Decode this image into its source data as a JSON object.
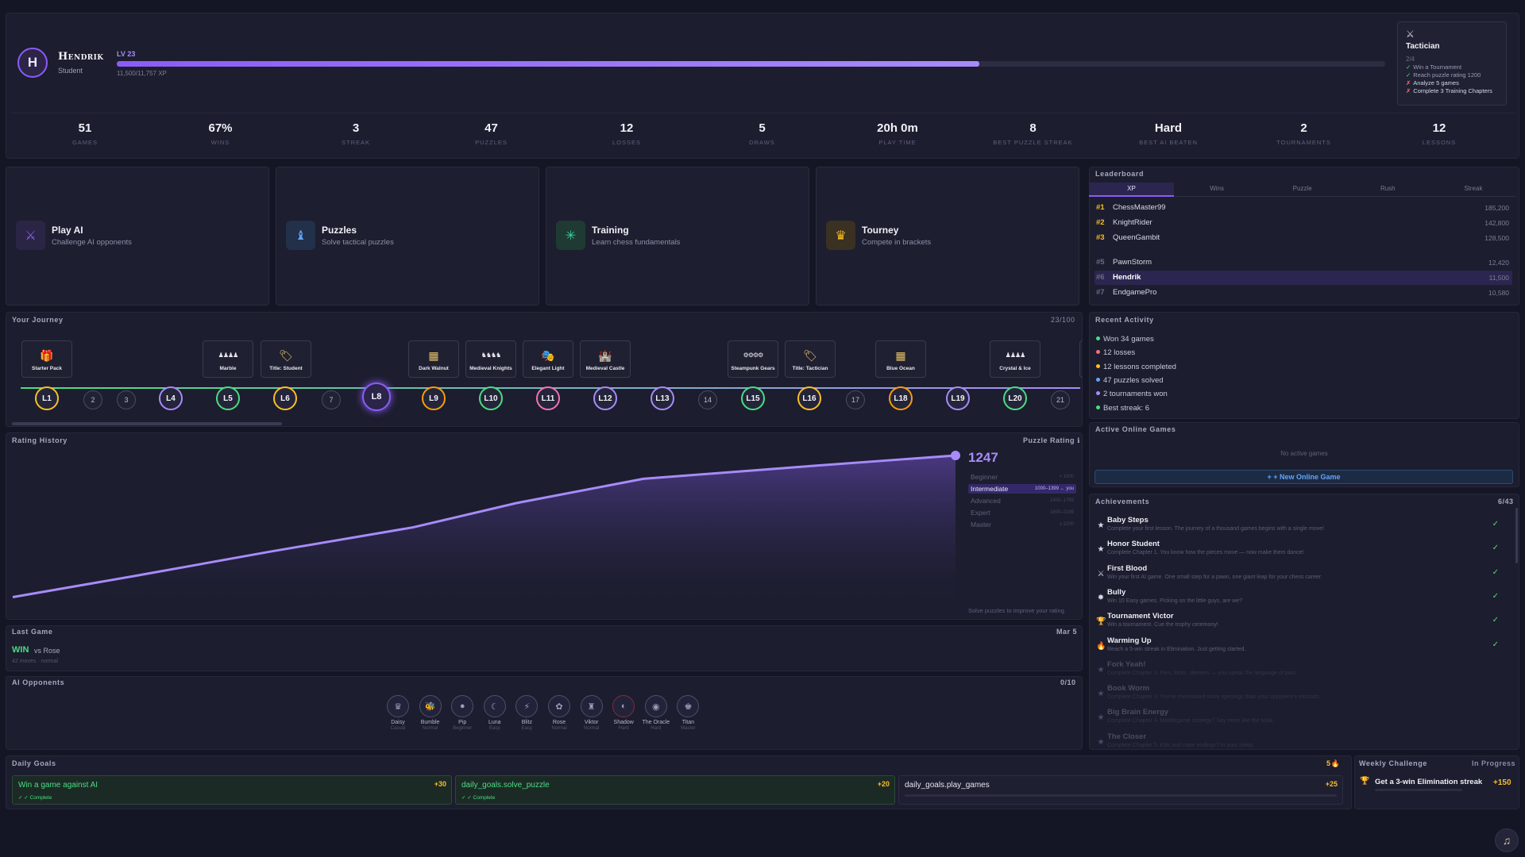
{
  "profile": {
    "initial": "H",
    "name": "Hendrik",
    "role": "Student",
    "level": "LV 23",
    "xp_text": "11,500/11,757 XP",
    "xp_progress": 0.68
  },
  "title_card": {
    "icon": "swords-icon",
    "title": "Tactician",
    "progress": "2/4",
    "reqs": [
      {
        "mark": "✓",
        "text": "Win a Tournament",
        "done": true
      },
      {
        "mark": "✓",
        "text": "Reach puzzle rating 1200",
        "done": true
      },
      {
        "mark": "✗",
        "text": "Analyze 5 games",
        "done": false
      },
      {
        "mark": "✗",
        "text": "Complete 3 Training Chapters",
        "done": false
      }
    ]
  },
  "stats": [
    {
      "value": "51",
      "label": "GAMES"
    },
    {
      "value": "67%",
      "label": "WINS"
    },
    {
      "value": "3",
      "label": "STREAK"
    },
    {
      "value": "47",
      "label": "PUZZLES"
    },
    {
      "value": "12",
      "label": "LOSSES"
    },
    {
      "value": "5",
      "label": "DRAWS"
    },
    {
      "value": "20h 0m",
      "label": "PLAY TIME"
    },
    {
      "value": "8",
      "label": "BEST PUZZLE STREAK"
    },
    {
      "value": "Hard",
      "label": "BEST AI BEATEN"
    },
    {
      "value": "2",
      "label": "TOURNAMENTS"
    },
    {
      "value": "12",
      "label": "LESSONS"
    }
  ],
  "modes": [
    {
      "title": "Play AI",
      "subtitle": "Challenge AI opponents",
      "icon": "⚔",
      "color": "#8b5cf6",
      "bg": "#2b2545"
    },
    {
      "title": "Puzzles",
      "subtitle": "Solve tactical puzzles",
      "icon": "♝",
      "color": "#60a5fa",
      "bg": "#22304a"
    },
    {
      "title": "Training",
      "subtitle": "Learn chess fundamentals",
      "icon": "✳",
      "color": "#34d399",
      "bg": "#1f3a33"
    },
    {
      "title": "Tourney",
      "subtitle": "Compete in brackets",
      "icon": "♛",
      "color": "#fbbf24",
      "bg": "#3a3122"
    }
  ],
  "leaderboard": {
    "title": "Leaderboard",
    "tabs": [
      "XP",
      "Wins",
      "Puzzle",
      "Rush",
      "Streak"
    ],
    "rows": [
      {
        "rank": "#1",
        "name": "ChessMaster99",
        "score": "185,200",
        "color": "#fbbf24"
      },
      {
        "rank": "#2",
        "name": "KnightRider",
        "score": "142,800",
        "color": "#fbbf24"
      },
      {
        "rank": "#3",
        "name": "QueenGambit",
        "score": "128,500",
        "color": "#fbbf24"
      },
      {
        "rank": "#5",
        "name": "PawnStorm",
        "score": "12,420",
        "color": "#6b6d85"
      },
      {
        "rank": "#6",
        "name": "Hendrik",
        "score": "11,500",
        "color": "#6b6d85"
      },
      {
        "rank": "#7",
        "name": "EndgamePro",
        "score": "10,580",
        "color": "#6b6d85"
      }
    ]
  },
  "journey": {
    "title": "Your Journey",
    "count": "23/100",
    "cards": [
      {
        "label": "Starter Pack",
        "icon": "🎁"
      },
      {
        "label": "Marble",
        "icon": "♟♟♟♟"
      },
      {
        "label": "Title: Student",
        "icon": "🏷"
      },
      {
        "label": "Dark Walnut",
        "icon": "▦"
      },
      {
        "label": "Medieval Knights",
        "icon": "♞♞♞♞"
      },
      {
        "label": "Elegant Light",
        "icon": "🎭"
      },
      {
        "label": "Medieval Castle",
        "icon": "🏰"
      },
      {
        "label": "Steampunk Gears",
        "icon": "⚙⚙⚙⚙"
      },
      {
        "label": "Title: Tactician",
        "icon": "🏷"
      },
      {
        "label": "Blue Ocean",
        "icon": "▦"
      },
      {
        "label": "Crystal & Ice",
        "icon": "♟♟♟♟"
      }
    ],
    "nodes": [
      "L1",
      "2",
      "3",
      "L4",
      "L5",
      "L6",
      "7",
      "L8",
      "L9",
      "L10",
      "L11",
      "L12",
      "L13",
      "14",
      "L15",
      "L16",
      "17",
      "L18",
      "L19",
      "L20",
      "21"
    ]
  },
  "activity": {
    "title": "Recent Activity",
    "items": [
      {
        "text": "Won 34 games",
        "color": "#4ade80"
      },
      {
        "text": "12 losses",
        "color": "#f87171"
      },
      {
        "text": "12 lessons completed",
        "color": "#fbbf24"
      },
      {
        "text": "47 puzzles solved",
        "color": "#60a5fa"
      },
      {
        "text": "2 tournaments won",
        "color": "#a78bfa"
      },
      {
        "text": "Best streak: 6",
        "color": "#4ade80"
      }
    ]
  },
  "online": {
    "title": "Active Online Games",
    "empty": "No active games",
    "button": "+ + New Online Game"
  },
  "rating": {
    "title": "Rating History",
    "label": "Puzzle Rating ℹ",
    "value": "1247",
    "hint": "Solve puzzles to improve your rating",
    "tiers": [
      {
        "name": "Beginner",
        "range": "< 1000",
        "current": false
      },
      {
        "name": "Intermediate",
        "range": "1000–1399 ← you",
        "current": true
      },
      {
        "name": "Advanced",
        "range": "1400–1799",
        "current": false
      },
      {
        "name": "Expert",
        "range": "1800–2199",
        "current": false
      },
      {
        "name": "Master",
        "range": "≥ 2200",
        "current": false
      }
    ]
  },
  "chart_data": {
    "type": "area",
    "series": [
      {
        "values": [
          780,
          850,
          930,
          1010,
          1090,
          1170,
          1210,
          1235,
          1247
        ]
      }
    ],
    "ylim": [
      750,
      1260
    ]
  },
  "last_game": {
    "title": "Last Game",
    "date": "Mar 5",
    "result": "WIN",
    "opponent": "vs Rose",
    "meta": "42 moves · normal"
  },
  "ai": {
    "title": "AI Opponents",
    "count": "0/10",
    "list": [
      {
        "name": "Daisy",
        "diff": "Casual",
        "icon": "♛"
      },
      {
        "name": "Bumble",
        "diff": "Normal",
        "icon": "🐝"
      },
      {
        "name": "Pip",
        "diff": "Beginner",
        "icon": "●"
      },
      {
        "name": "Luna",
        "diff": "Easy",
        "icon": "☾"
      },
      {
        "name": "Blitz",
        "diff": "Easy",
        "icon": "⚡"
      },
      {
        "name": "Rose",
        "diff": "Normal",
        "icon": "✿"
      },
      {
        "name": "Viktor",
        "diff": "Normal",
        "icon": "♜"
      },
      {
        "name": "Shadow",
        "diff": "Hard",
        "icon": "◐"
      },
      {
        "name": "The Oracle",
        "diff": "Hard",
        "icon": "◉"
      },
      {
        "name": "Titan",
        "diff": "Master",
        "icon": "♚"
      }
    ]
  },
  "achievements": {
    "title": "Achievements",
    "count": "6/43",
    "list": [
      {
        "title": "Baby Steps",
        "desc": "Complete your first lesson. The journey of a thousand games begins with a single move!",
        "icon": "★",
        "done": true
      },
      {
        "title": "Honor Student",
        "desc": "Complete Chapter 1. You know how the pieces move — now make them dance!",
        "icon": "★",
        "done": true
      },
      {
        "title": "First Blood",
        "desc": "Win your first AI game. One small step for a pawn, one giant leap for your chess career.",
        "icon": "⚔",
        "done": true
      },
      {
        "title": "Bully",
        "desc": "Win 10 Easy games. Picking on the little guys, are we?",
        "icon": "✸",
        "done": true
      },
      {
        "title": "Tournament Victor",
        "desc": "Win a tournament. Cue the trophy ceremony!",
        "icon": "🏆",
        "done": true
      },
      {
        "title": "Warming Up",
        "desc": "Reach a 5-win streak in Elimination. Just getting started.",
        "icon": "🔥",
        "done": true
      },
      {
        "title": "Fork Yeah!",
        "desc": "Complete Chapter 3. Pins, forks, skewers — you speak the language of pain.",
        "icon": "★",
        "done": false
      },
      {
        "title": "Book Worm",
        "desc": "Complete Chapter 3. You've memorized more openings than your opponent's excuses.",
        "icon": "★",
        "done": false
      },
      {
        "title": "Big Brain Energy",
        "desc": "Complete Chapter 4. Middlegame strategy? Say more like the book.",
        "icon": "★",
        "done": false
      },
      {
        "title": "The Closer",
        "desc": "Complete Chapter 5. Kills and mate endings? In your sleep.",
        "icon": "★",
        "done": false
      }
    ]
  },
  "daily": {
    "title": "Daily Goals",
    "streak": "5🔥",
    "goals": [
      {
        "text": "Win a game against AI",
        "points": "+30",
        "status": "✓ ✓ Complete",
        "complete": true
      },
      {
        "text": "daily_goals.solve_puzzle",
        "points": "+20",
        "status": "✓ ✓ Complete",
        "complete": true
      },
      {
        "text": "daily_goals.play_games",
        "points": "+25",
        "status": "",
        "complete": false
      }
    ]
  },
  "weekly": {
    "title": "Weekly Challenge",
    "status": "In Progress",
    "text": "Get a 3-win Elimination streak",
    "points": "+150"
  },
  "music": {
    "icon": "♫"
  }
}
